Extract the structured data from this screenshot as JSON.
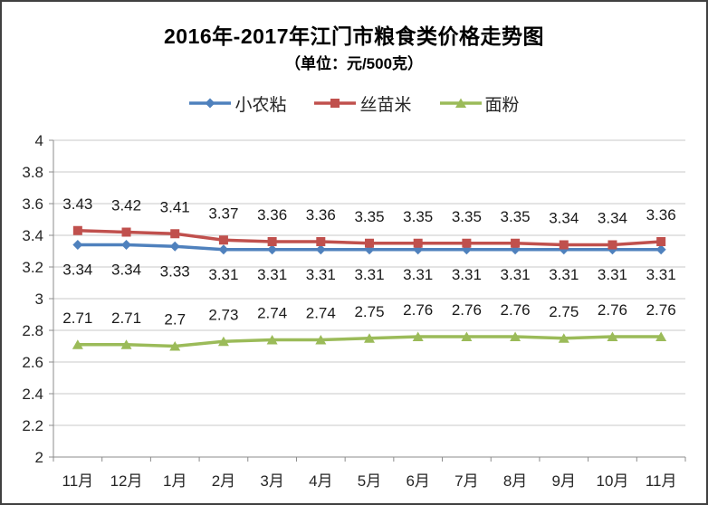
{
  "chart_data": {
    "type": "line",
    "title": "2016年-2017年江门市粮食类价格走势图",
    "subtitle": "（单位：元/500克）",
    "categories": [
      "11月",
      "12月",
      "1月",
      "2月",
      "3月",
      "4月",
      "5月",
      "6月",
      "7月",
      "8月",
      "9月",
      "10月",
      "11月"
    ],
    "series": [
      {
        "name": "小农粘",
        "color": "#4F81BD",
        "marker": "diamond",
        "label_position": "below",
        "values": [
          3.34,
          3.34,
          3.33,
          3.31,
          3.31,
          3.31,
          3.31,
          3.31,
          3.31,
          3.31,
          3.31,
          3.31,
          3.31
        ]
      },
      {
        "name": "丝苗米",
        "color": "#C0504D",
        "marker": "square",
        "label_position": "above",
        "values": [
          3.43,
          3.42,
          3.41,
          3.37,
          3.36,
          3.36,
          3.35,
          3.35,
          3.35,
          3.35,
          3.34,
          3.34,
          3.36
        ]
      },
      {
        "name": "面粉",
        "color": "#9BBB59",
        "marker": "triangle",
        "label_position": "above",
        "values": [
          2.71,
          2.71,
          2.7,
          2.73,
          2.74,
          2.74,
          2.75,
          2.76,
          2.76,
          2.76,
          2.75,
          2.76,
          2.76
        ]
      }
    ],
    "y_ticks": [
      4,
      3.8,
      3.6,
      3.4,
      3.2,
      3,
      2.8,
      2.6,
      2.4,
      2.2,
      2
    ],
    "ylim": [
      2,
      4
    ],
    "xlabel": "",
    "ylabel": "",
    "grid": true,
    "legend_position": "top"
  }
}
